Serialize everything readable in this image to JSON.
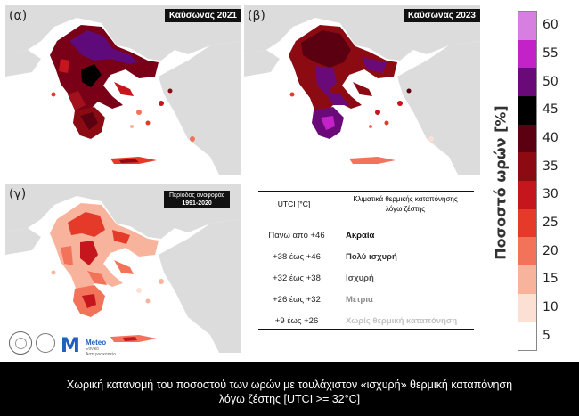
{
  "panels": [
    {
      "letter": "(α)",
      "title": "Καύσωνας 2021"
    },
    {
      "letter": "(β)",
      "title": "Καύσωνας 2023"
    },
    {
      "letter": "(γ)",
      "title_line1": "Περίοδος αναφοράς",
      "title_line2": "1991-2020"
    }
  ],
  "table": {
    "header_utci": "UTCI [°C]",
    "header_class_line1": "Κλιματικά θερμικής καταπόνησης",
    "header_class_line2": "λόγω ζέστης",
    "rows": [
      {
        "range": "Πάνω από +46",
        "label": "Ακραία",
        "color": "#111111"
      },
      {
        "range": "+38 έως +46",
        "label": "Πολύ ισχυρή",
        "color": "#333333"
      },
      {
        "range": "+32 έως +38",
        "label": "Ισχυρή",
        "color": "#555555"
      },
      {
        "range": "+26 έως +32",
        "label": "Μέτρια",
        "color": "#8a8a8a"
      },
      {
        "range": "+9 έως +26",
        "label": "Χωρίς θερμική καταπόνηση",
        "color": "#c2c2c2"
      }
    ]
  },
  "colorbar": {
    "label": "Ποσοστό ωρών [%]",
    "ticks": [
      "60",
      "55",
      "50",
      "45",
      "40",
      "35",
      "30",
      "25",
      "20",
      "15",
      "10",
      "5"
    ],
    "colors_top_to_bottom": [
      "#d77fe0",
      "#c222c8",
      "#6a0a78",
      "#000000",
      "#5a0010",
      "#8c0a12",
      "#c4161c",
      "#e5392a",
      "#f2735a",
      "#f8b39c",
      "#fce0d4",
      "#ffffff"
    ]
  },
  "logos": {
    "meteo_name": "Meteo",
    "meteo_sub": "Εθνικό Αστεροσκοπείο"
  },
  "footer": {
    "line1": "Χωρική κατανομή του ποσοστού των ωρών με τουλάχιστον «ισχυρή» θερμική καταπόνηση",
    "line2": "λόγω ζέστης [UTCI >= 32°C]"
  }
}
